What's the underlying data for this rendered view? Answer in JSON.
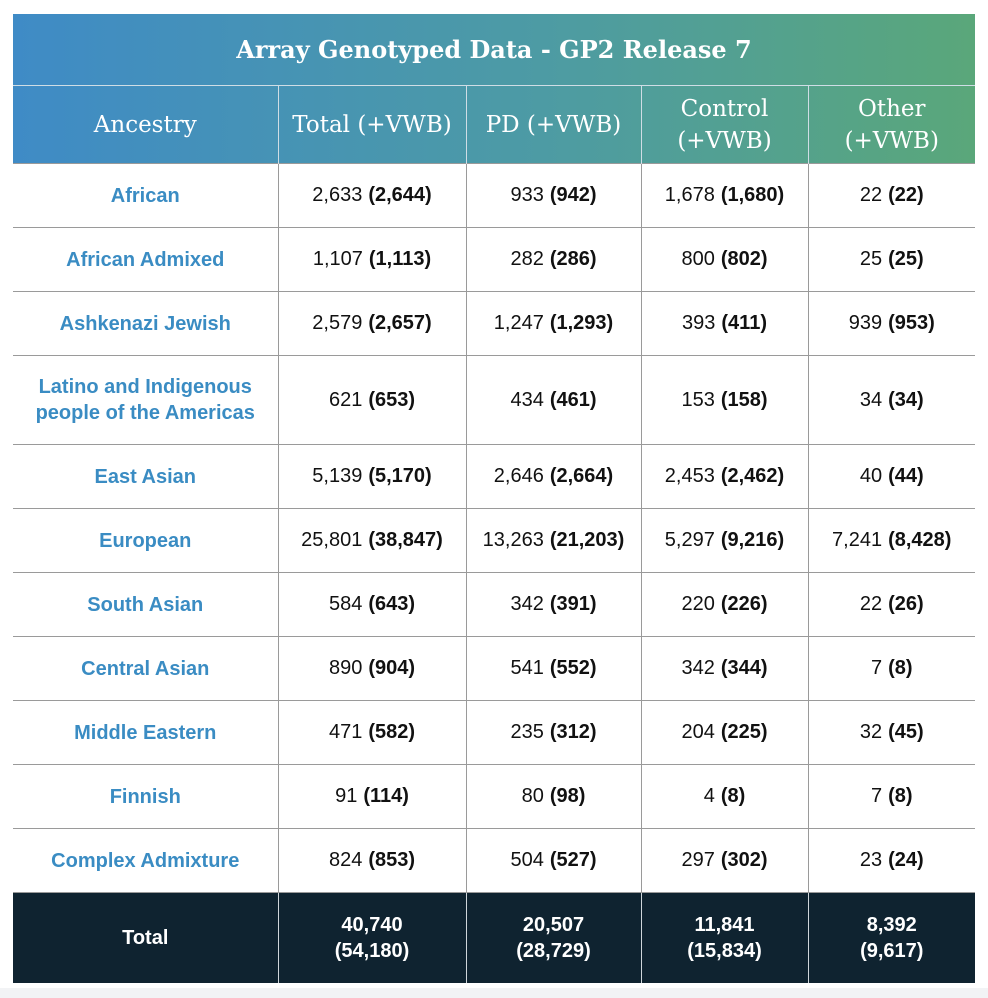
{
  "title": "Array Genotyped Data - GP2 Release 7",
  "headers": [
    "Ancestry",
    "Total (+VWB)",
    "PD (+VWB)",
    "Control (+VWB)",
    "Other (+VWB)"
  ],
  "rows": [
    {
      "ancestry": "African",
      "cells": [
        [
          "2,633",
          "(2,644)"
        ],
        [
          "933",
          "(942)"
        ],
        [
          "1,678",
          "(1,680)"
        ],
        [
          "22",
          "(22)"
        ]
      ]
    },
    {
      "ancestry": "African Admixed",
      "cells": [
        [
          "1,107",
          "(1,113)"
        ],
        [
          "282",
          "(286)"
        ],
        [
          "800",
          "(802)"
        ],
        [
          "25",
          "(25)"
        ]
      ]
    },
    {
      "ancestry": "Ashkenazi Jewish",
      "cells": [
        [
          "2,579",
          "(2,657)"
        ],
        [
          "1,247",
          "(1,293)"
        ],
        [
          "393",
          "(411)"
        ],
        [
          "939",
          "(953)"
        ]
      ]
    },
    {
      "ancestry": "Latino and Indigenous people of the Americas",
      "cells": [
        [
          "621",
          "(653)"
        ],
        [
          "434",
          "(461)"
        ],
        [
          "153",
          "(158)"
        ],
        [
          "34",
          "(34)"
        ]
      ]
    },
    {
      "ancestry": "East Asian",
      "cells": [
        [
          "5,139",
          "(5,170)"
        ],
        [
          "2,646",
          "(2,664)"
        ],
        [
          "2,453",
          "(2,462)"
        ],
        [
          "40",
          "(44)"
        ]
      ]
    },
    {
      "ancestry": "European",
      "cells": [
        [
          "25,801",
          "(38,847)"
        ],
        [
          "13,263",
          "(21,203)"
        ],
        [
          "5,297",
          "(9,216)"
        ],
        [
          "7,241",
          "(8,428)"
        ]
      ]
    },
    {
      "ancestry": "South Asian",
      "cells": [
        [
          "584",
          "(643)"
        ],
        [
          "342",
          "(391)"
        ],
        [
          "220",
          "(226)"
        ],
        [
          "22",
          "(26)"
        ]
      ]
    },
    {
      "ancestry": "Central Asian",
      "cells": [
        [
          "890",
          "(904)"
        ],
        [
          "541",
          "(552)"
        ],
        [
          "342",
          "(344)"
        ],
        [
          "7",
          "(8)"
        ]
      ]
    },
    {
      "ancestry": "Middle Eastern",
      "cells": [
        [
          "471",
          "(582)"
        ],
        [
          "235",
          "(312)"
        ],
        [
          "204",
          "(225)"
        ],
        [
          "32",
          "(45)"
        ]
      ]
    },
    {
      "ancestry": "Finnish",
      "cells": [
        [
          "91",
          "(114)"
        ],
        [
          "80",
          "(98)"
        ],
        [
          "4",
          "(8)"
        ],
        [
          "7",
          "(8)"
        ]
      ]
    },
    {
      "ancestry": "Complex Admixture",
      "cells": [
        [
          "824",
          "(853)"
        ],
        [
          "504",
          "(527)"
        ],
        [
          "297",
          "(302)"
        ],
        [
          "23",
          "(24)"
        ]
      ]
    }
  ],
  "total": {
    "label": "Total",
    "cells": [
      [
        "40,740",
        "(54,180)"
      ],
      [
        "20,507",
        "(28,729)"
      ],
      [
        "11,841",
        "(15,834)"
      ],
      [
        "8,392",
        "(9,617)"
      ]
    ]
  }
}
